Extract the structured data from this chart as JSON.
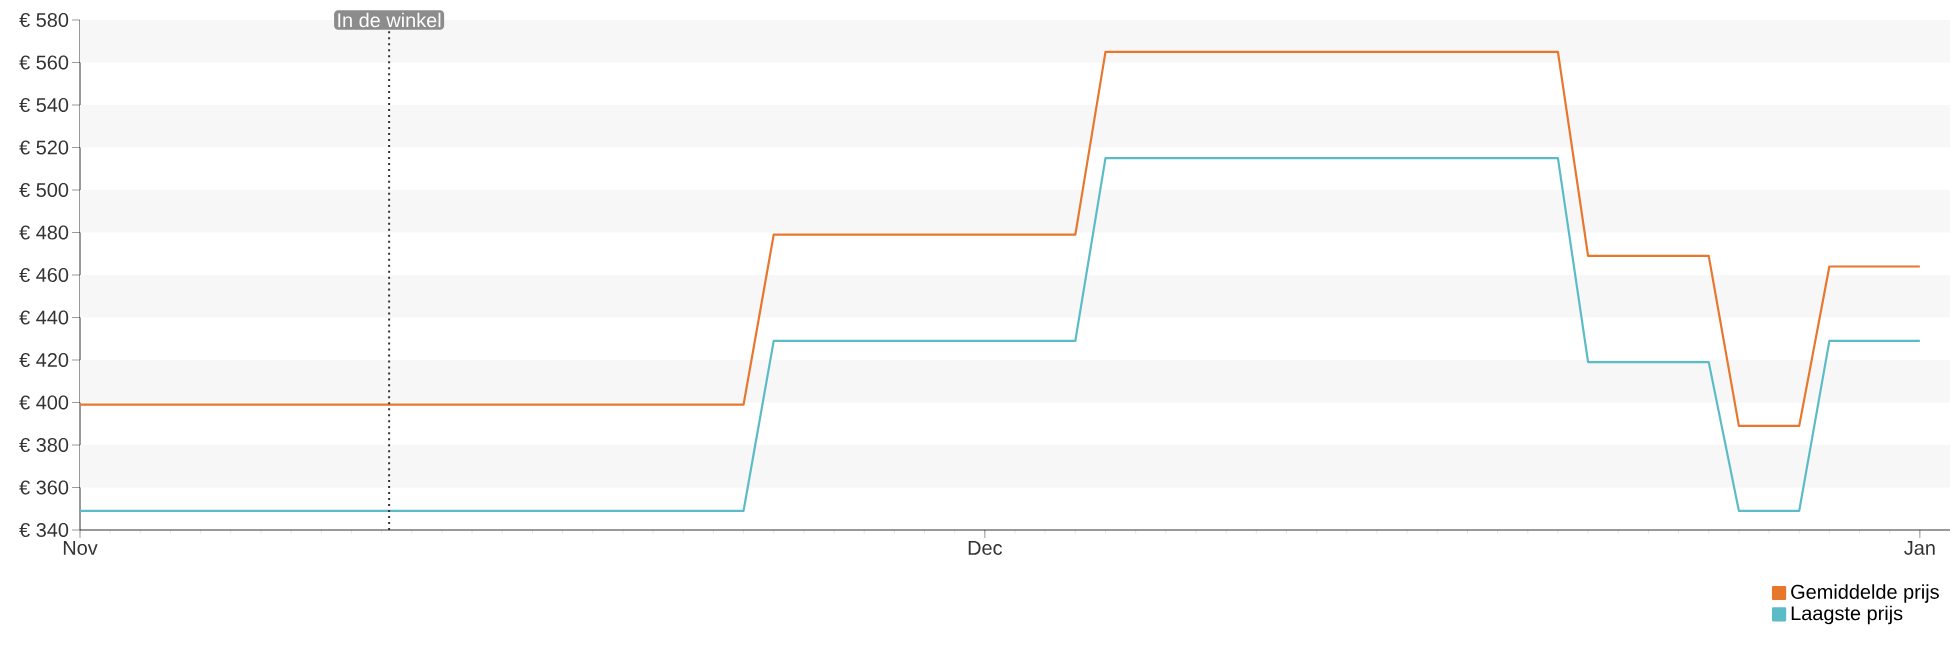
{
  "chart_data": {
    "type": "line",
    "categories": [
      "Nov",
      null,
      null,
      null,
      null,
      null,
      null,
      null,
      null,
      null,
      null,
      null,
      null,
      null,
      null,
      null,
      null,
      null,
      null,
      null,
      null,
      null,
      null,
      null,
      null,
      null,
      null,
      null,
      null,
      null,
      "Dec",
      null,
      null,
      null,
      null,
      null,
      null,
      null,
      null,
      null,
      null,
      null,
      null,
      null,
      null,
      null,
      null,
      null,
      null,
      null,
      null,
      null,
      null,
      null,
      null,
      null,
      null,
      null,
      null,
      null,
      null,
      "Jan"
    ],
    "ylim": [
      340,
      580
    ],
    "yticks": [
      {
        "value": 340,
        "label": "€ 340"
      },
      {
        "value": 360,
        "label": "€ 360"
      },
      {
        "value": 380,
        "label": "€ 380"
      },
      {
        "value": 400,
        "label": "€ 400"
      },
      {
        "value": 420,
        "label": "€ 420"
      },
      {
        "value": 440,
        "label": "€ 440"
      },
      {
        "value": 460,
        "label": "€ 460"
      },
      {
        "value": 480,
        "label": "€ 480"
      },
      {
        "value": 500,
        "label": "€ 500"
      },
      {
        "value": 520,
        "label": "€ 520"
      },
      {
        "value": 540,
        "label": "€ 540"
      },
      {
        "value": 560,
        "label": "€ 560"
      },
      {
        "value": 580,
        "label": "€ 580"
      }
    ],
    "legend": "bottom right",
    "annotations": [
      "In de winkel"
    ],
    "series": [
      {
        "name": "Gemiddelde prijs",
        "color": "#e8772e",
        "values": [
          399,
          399,
          399,
          399,
          399,
          399,
          399,
          399,
          399,
          399,
          399,
          399,
          399,
          399,
          399,
          399,
          399,
          399,
          399,
          399,
          399,
          399,
          399,
          479,
          479,
          479,
          479,
          479,
          479,
          479,
          479,
          479,
          479,
          479,
          565,
          565,
          565,
          565,
          565,
          565,
          565,
          565,
          565,
          565,
          565,
          565,
          565,
          565,
          565,
          565,
          469,
          469,
          469,
          469,
          469,
          389,
          389,
          389,
          464,
          464,
          464,
          464
        ]
      },
      {
        "name": "Laagste prijs",
        "color": "#5bbcc8",
        "values": [
          349,
          349,
          349,
          349,
          349,
          349,
          349,
          349,
          349,
          349,
          349,
          349,
          349,
          349,
          349,
          349,
          349,
          349,
          349,
          349,
          349,
          349,
          349,
          429,
          429,
          429,
          429,
          429,
          429,
          429,
          429,
          429,
          429,
          429,
          515,
          515,
          515,
          515,
          515,
          515,
          515,
          515,
          515,
          515,
          515,
          515,
          515,
          515,
          515,
          515,
          419,
          419,
          419,
          419,
          419,
          349,
          349,
          349,
          429,
          429,
          429,
          429
        ]
      }
    ]
  }
}
